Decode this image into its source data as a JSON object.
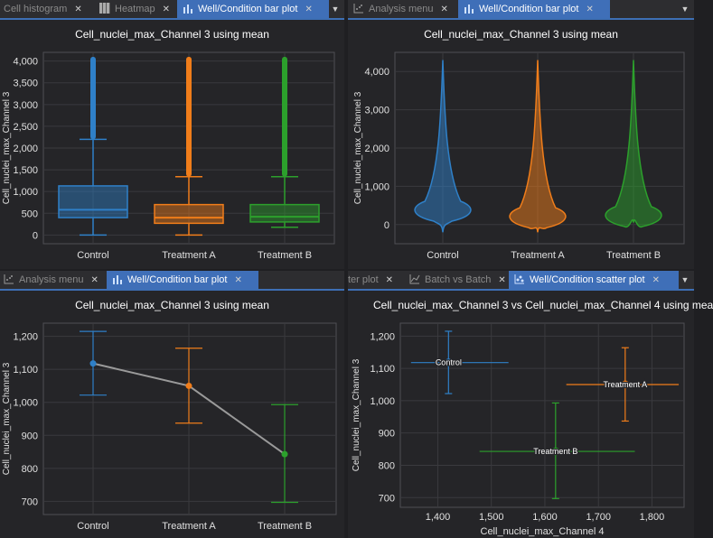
{
  "panes": {
    "top_left": {
      "tabs": [
        {
          "label": "Cell histogram",
          "icon": "histogram-icon",
          "active": false
        },
        {
          "label": "Heatmap",
          "icon": "heatmap-icon",
          "active": false
        },
        {
          "label": "Well/Condition bar plot",
          "icon": "bar-chart-icon",
          "active": true
        }
      ]
    },
    "top_right": {
      "tabs": [
        {
          "label": "Analysis menu",
          "icon": "analysis-icon",
          "active": false
        },
        {
          "label": "Well/Condition bar plot",
          "icon": "bar-chart-icon",
          "active": true
        }
      ]
    },
    "bottom_left": {
      "tabs": [
        {
          "label": "Analysis menu",
          "icon": "analysis-icon",
          "active": false
        },
        {
          "label": "Well/Condition bar plot",
          "icon": "bar-chart-icon",
          "active": true
        }
      ]
    },
    "bottom_right": {
      "tabs": [
        {
          "label": "ter plot",
          "icon": "",
          "active": false
        },
        {
          "label": "Batch vs Batch",
          "icon": "line-chart-icon",
          "active": false
        },
        {
          "label": "Well/Condition scatter plot",
          "icon": "scatter-icon",
          "active": true
        }
      ]
    }
  },
  "colors": {
    "Control": "#2f80c8",
    "Treatment A": "#f07d1a",
    "Treatment B": "#2ca02c",
    "line": "#9a9a9a"
  },
  "chart_data": [
    {
      "type": "box",
      "title": "Cell_nuclei_max_Channel 3 using mean",
      "xlabel": "",
      "ylabel": "Cell_nuclei_max_Channel 3",
      "categories": [
        "Control",
        "Treatment A",
        "Treatment B"
      ],
      "ylim": [
        -200,
        4200
      ],
      "yticks": [
        0,
        500,
        1000,
        1500,
        2000,
        2500,
        3000,
        3500,
        4000
      ],
      "ytick_labels": [
        "0",
        "500",
        "1,000",
        "1,500",
        "2,000",
        "2,500",
        "3,000",
        "3,500",
        "4,000"
      ],
      "grid": true,
      "boxes": [
        {
          "name": "Control",
          "whisker_low": 0,
          "q1": 400,
          "median": 580,
          "q3": 1130,
          "whisker_high": 2200,
          "outlier_max": 4100
        },
        {
          "name": "Treatment A",
          "whisker_low": 0,
          "q1": 270,
          "median": 400,
          "q3": 700,
          "whisker_high": 1340,
          "outlier_max": 4100
        },
        {
          "name": "Treatment B",
          "whisker_low": 180,
          "q1": 300,
          "median": 420,
          "q3": 700,
          "whisker_high": 1340,
          "outlier_max": 4100
        }
      ]
    },
    {
      "type": "violin",
      "title": "Cell_nuclei_max_Channel 3 using mean",
      "xlabel": "",
      "ylabel": "Cell_nuclei_max_Channel 3",
      "categories": [
        "Control",
        "Treatment A",
        "Treatment B"
      ],
      "ylim": [
        -500,
        4500
      ],
      "yticks": [
        0,
        1000,
        2000,
        3000,
        4000
      ],
      "ytick_labels": [
        "0",
        "1,000",
        "2,000",
        "3,000",
        "4,000"
      ],
      "grid": true,
      "violins": [
        {
          "name": "Control",
          "min": -200,
          "max": 4300,
          "mode": 420
        },
        {
          "name": "Treatment A",
          "min": -200,
          "max": 4300,
          "mode": 250
        },
        {
          "name": "Treatment B",
          "min": 50,
          "max": 4300,
          "mode": 280
        }
      ]
    },
    {
      "type": "line",
      "title": "Cell_nuclei_max_Channel 3 using mean",
      "xlabel": "",
      "ylabel": "Cell_nuclei_max_Channel 3",
      "categories": [
        "Control",
        "Treatment A",
        "Treatment B"
      ],
      "ylim": [
        660,
        1240
      ],
      "yticks": [
        700,
        800,
        900,
        1000,
        1100,
        1200
      ],
      "ytick_labels": [
        "700",
        "800",
        "900",
        "1,000",
        "1,100",
        "1,200"
      ],
      "grid": true,
      "points": [
        {
          "name": "Control",
          "y": 1118,
          "ylow": 1022,
          "yhigh": 1215
        },
        {
          "name": "Treatment A",
          "y": 1050,
          "ylow": 937,
          "yhigh": 1164
        },
        {
          "name": "Treatment B",
          "y": 843,
          "ylow": 697,
          "yhigh": 993
        }
      ]
    },
    {
      "type": "scatter",
      "title": "Cell_nuclei_max_Channel 3 vs Cell_nuclei_max_Channel 4 using mea",
      "xlabel": "Cell_nuclei_max_Channel 4",
      "ylabel": "Cell_nuclei_max_Channel 3",
      "xlim": [
        1330,
        1860
      ],
      "ylim": [
        670,
        1240
      ],
      "xticks": [
        1400,
        1500,
        1600,
        1700,
        1800
      ],
      "xtick_labels": [
        "1,400",
        "1,500",
        "1,600",
        "1,700",
        "1,800"
      ],
      "yticks": [
        700,
        800,
        900,
        1000,
        1100,
        1200
      ],
      "ytick_labels": [
        "700",
        "800",
        "900",
        "1,000",
        "1,100",
        "1,200"
      ],
      "grid": true,
      "points": [
        {
          "name": "Control",
          "label": "Control",
          "x": 1420,
          "y": 1118,
          "xlow": 1350,
          "xhigh": 1532,
          "ylow": 1022,
          "yhigh": 1215
        },
        {
          "name": "Treatment A",
          "label": "Treatment A",
          "x": 1750,
          "y": 1050,
          "xlow": 1640,
          "xhigh": 1850,
          "ylow": 937,
          "yhigh": 1164
        },
        {
          "name": "Treatment B",
          "label": "Treatment B",
          "x": 1620,
          "y": 843,
          "xlow": 1478,
          "xhigh": 1768,
          "ylow": 697,
          "yhigh": 993
        }
      ]
    }
  ]
}
